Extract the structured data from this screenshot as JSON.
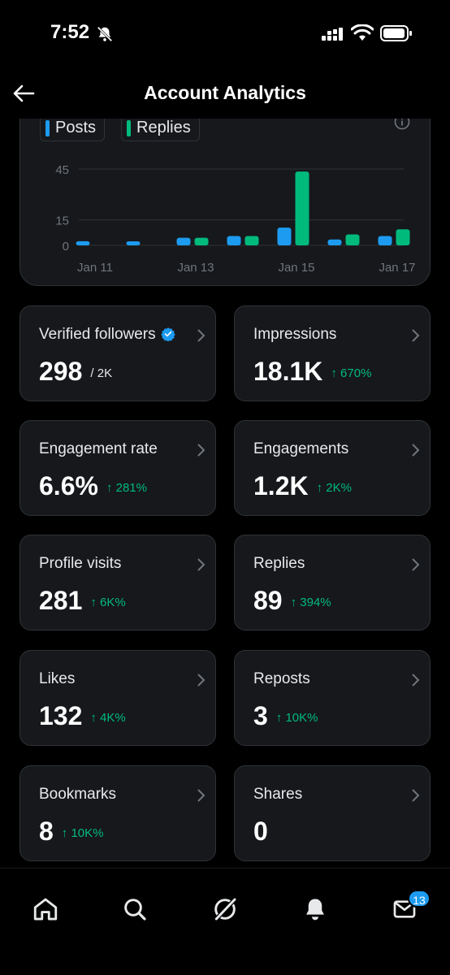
{
  "status_bar": {
    "time": "7:52"
  },
  "header": {
    "title": "Account Analytics"
  },
  "chart": {
    "legend": {
      "posts": "Posts",
      "replies": "Replies"
    },
    "colors": {
      "posts": "#1d9bf0",
      "replies": "#00ba7c"
    }
  },
  "chart_data": {
    "type": "bar",
    "categories": [
      "Jan 11",
      "Jan 12",
      "Jan 13",
      "Jan 14",
      "Jan 15",
      "Jan 16",
      "Jan 17"
    ],
    "x_tick_labels": [
      "Jan 11",
      "Jan 13",
      "Jan 15",
      "Jan 17"
    ],
    "y_tick_labels": [
      "45",
      "15",
      "0"
    ],
    "ylim": [
      0,
      45
    ],
    "series": [
      {
        "name": "Posts",
        "values": [
          2,
          1,
          4,
          5,
          10,
          3,
          5
        ]
      },
      {
        "name": "Replies",
        "values": [
          0,
          0,
          4,
          5,
          43,
          6,
          9
        ]
      }
    ],
    "grid": true
  },
  "metrics": [
    {
      "label": "Verified followers",
      "value": "298",
      "suffix": "/ 2K",
      "verified": true
    },
    {
      "label": "Impressions",
      "value": "18.1K",
      "change": "↑ 670%"
    },
    {
      "label": "Engagement rate",
      "value": "6.6%",
      "change": "↑ 281%"
    },
    {
      "label": "Engagements",
      "value": "1.2K",
      "change": "↑ 2K%"
    },
    {
      "label": "Profile visits",
      "value": "281",
      "change": "↑ 6K%"
    },
    {
      "label": "Replies",
      "value": "89",
      "change": "↑ 394%"
    },
    {
      "label": "Likes",
      "value": "132",
      "change": "↑ 4K%"
    },
    {
      "label": "Reposts",
      "value": "3",
      "change": "↑ 10K%"
    },
    {
      "label": "Bookmarks",
      "value": "8",
      "change": "↑ 10K%"
    },
    {
      "label": "Shares",
      "value": "0"
    }
  ],
  "bottom_nav": {
    "messages_badge": "13"
  }
}
